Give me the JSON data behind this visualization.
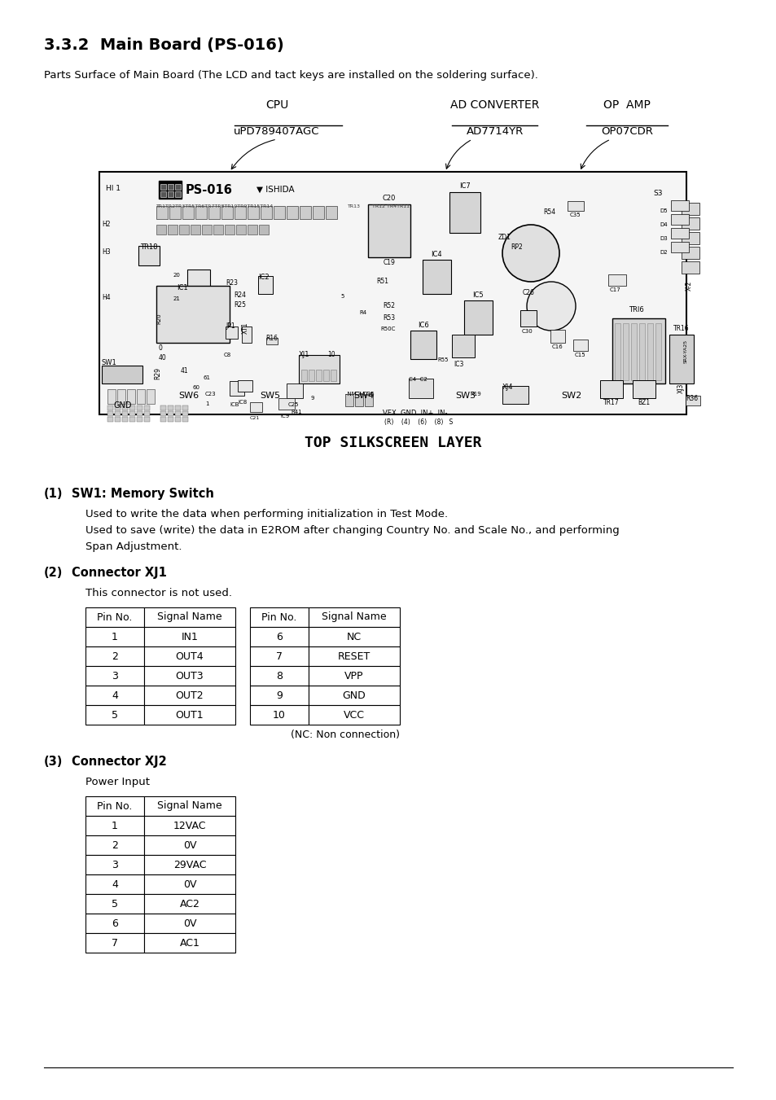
{
  "title": "3.3.2  Main Board (PS-016)",
  "subtitle": "Parts Surface of Main Board (The LCD and tact keys are installed on the soldering surface).",
  "diagram_caption": "TOP SILKSCREEN LAYER",
  "cpu_label": "CPU",
  "cpu_chip": "uPD789407AGC",
  "ad_label": "AD CONVERTER",
  "ad_chip": "AD7714YR",
  "op_label": "OP  AMP",
  "op_chip": "OP07CDR",
  "section1_num": "(1)",
  "section1_title": "SW1: Memory Switch",
  "section1_text1": "Used to write the data when performing initialization in Test Mode.",
  "section1_text2": "Used to save (write) the data in E2ROM after changing Country No. and Scale No., and performing",
  "section1_text3": "Span Adjustment.",
  "section2_num": "(2)",
  "section2_title": "Connector XJ1",
  "section2_text": "This connector is not used.",
  "xj1_left_headers": [
    "Pin No.",
    "Signal Name"
  ],
  "xj1_left_rows": [
    [
      "1",
      "IN1"
    ],
    [
      "2",
      "OUT4"
    ],
    [
      "3",
      "OUT3"
    ],
    [
      "4",
      "OUT2"
    ],
    [
      "5",
      "OUT1"
    ]
  ],
  "xj1_right_headers": [
    "Pin No.",
    "Signal Name"
  ],
  "xj1_right_rows": [
    [
      "6",
      "NC"
    ],
    [
      "7",
      "RESET"
    ],
    [
      "8",
      "VPP"
    ],
    [
      "9",
      "GND"
    ],
    [
      "10",
      "VCC"
    ]
  ],
  "xj1_note": "(NC: Non connection)",
  "section3_num": "(3)",
  "section3_title": "Connector XJ2",
  "section3_text": "Power Input",
  "xj2_headers": [
    "Pin No.",
    "Signal Name"
  ],
  "xj2_rows": [
    [
      "1",
      "12VAC"
    ],
    [
      "2",
      "0V"
    ],
    [
      "3",
      "29VAC"
    ],
    [
      "4",
      "0V"
    ],
    [
      "5",
      "AC2"
    ],
    [
      "6",
      "0V"
    ],
    [
      "7",
      "AC1"
    ]
  ],
  "bg_color": "#ffffff",
  "text_color": "#000000"
}
